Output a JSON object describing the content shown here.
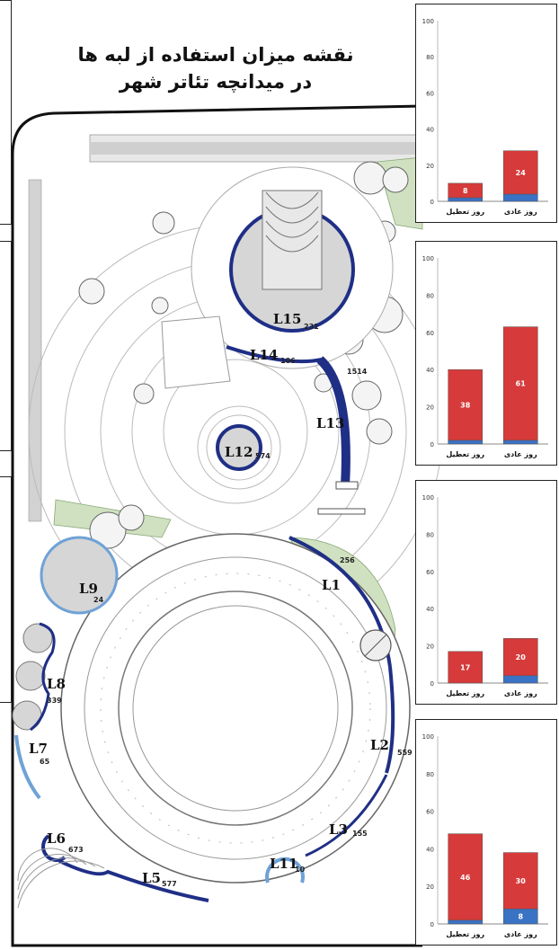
{
  "title": {
    "line1": "نقشه میزان استفاده از لبه ها",
    "line2": "در میدانچه تئاتر شهر"
  },
  "colors": {
    "holiday": "#d63a3a",
    "weekday_base": "#3a72c4",
    "edge_dark": "#1f2f86",
    "edge_light": "#6fa2d6",
    "green": "#cfe1c0",
    "plaza_gray": "#d6d6d6"
  },
  "edges": [
    {
      "id": "L1",
      "value": "256"
    },
    {
      "id": "L2",
      "value": "559"
    },
    {
      "id": "L3",
      "value": "155"
    },
    {
      "id": "L5",
      "value": "577"
    },
    {
      "id": "L6",
      "value": "673"
    },
    {
      "id": "L7",
      "value": "65"
    },
    {
      "id": "L8",
      "value": "339"
    },
    {
      "id": "L9",
      "value": "24"
    },
    {
      "id": "L11",
      "value": "10"
    },
    {
      "id": "L12",
      "value": "574"
    },
    {
      "id": "L13",
      "value": "1514"
    },
    {
      "id": "L14",
      "value": "106"
    },
    {
      "id": "L15",
      "value": "231"
    }
  ],
  "chart_data": [
    {
      "type": "bar",
      "ylim": [
        0,
        100
      ],
      "yticks": [
        "0",
        "20",
        "40",
        "60",
        "80",
        "100"
      ],
      "categories": [
        "روز تعطیل",
        "روز عادی"
      ],
      "series": [
        {
          "name": "",
          "values": [
            2,
            4
          ]
        },
        {
          "name": "",
          "values": [
            8,
            24
          ]
        }
      ]
    },
    {
      "type": "bar",
      "ylim": [
        0,
        100
      ],
      "yticks": [
        "0",
        "20",
        "40",
        "60",
        "80",
        "100"
      ],
      "categories": [
        "روز تعطیل",
        "روز عادی"
      ],
      "series": [
        {
          "name": "",
          "values": [
            2,
            2
          ]
        },
        {
          "name": "",
          "values": [
            38,
            61
          ]
        }
      ]
    },
    {
      "type": "bar",
      "ylim": [
        0,
        100
      ],
      "yticks": [
        "0",
        "20",
        "40",
        "60",
        "80",
        "100"
      ],
      "categories": [
        "روز تعطیل",
        "روز عادی"
      ],
      "series": [
        {
          "name": "",
          "values": [
            0,
            4
          ]
        },
        {
          "name": "",
          "values": [
            17,
            20
          ]
        }
      ]
    },
    {
      "type": "bar",
      "ylim": [
        0,
        100
      ],
      "yticks": [
        "0",
        "20",
        "40",
        "60",
        "80",
        "100"
      ],
      "categories": [
        "روز تعطیل",
        "روز عادی"
      ],
      "series": [
        {
          "name": "",
          "values": [
            2,
            8
          ]
        },
        {
          "name": "",
          "values": [
            46,
            30
          ]
        }
      ]
    }
  ]
}
